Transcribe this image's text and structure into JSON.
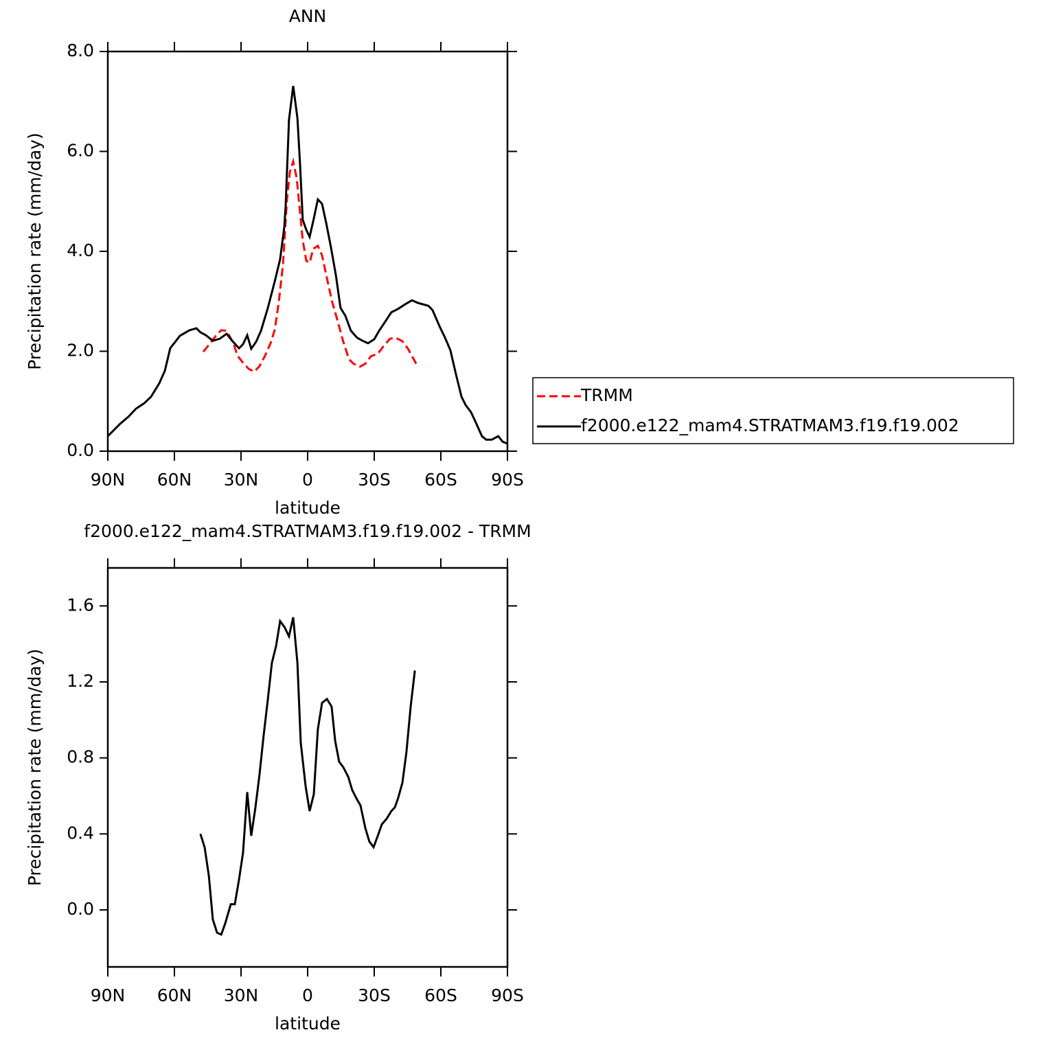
{
  "chart_data": [
    {
      "type": "line",
      "title": "ANN",
      "xlabel": "latitude",
      "ylabel": "Precipitation rate (mm/day)",
      "xlim": [
        90,
        -90
      ],
      "xticks": [
        {
          "value": 90,
          "label": "90N"
        },
        {
          "value": 60,
          "label": "60N"
        },
        {
          "value": 30,
          "label": "30N"
        },
        0,
        {
          "value": -30,
          "label": "30S"
        },
        {
          "value": -60,
          "label": "60S"
        },
        {
          "value": -90,
          "label": "90S"
        }
      ],
      "ylim": [
        0,
        8
      ],
      "yticks": [
        {
          "value": 0,
          "label": "0.0"
        },
        {
          "value": 2,
          "label": "2.0"
        },
        {
          "value": 4,
          "label": "4.0"
        },
        {
          "value": 6,
          "label": "6.0"
        },
        {
          "value": 8,
          "label": "8.0"
        }
      ],
      "legend": "right",
      "series": [
        {
          "name": "TRMM",
          "color": "#ff0000",
          "dash": "dashed",
          "x": [
            47.0,
            43.9,
            40.8,
            38.9,
            36.5,
            33.4,
            31.6,
            29.1,
            26.6,
            24.1,
            21.7,
            19.2,
            16.7,
            14.8,
            13.0,
            11.1,
            9.3,
            8.0,
            6.5,
            4.9,
            3.4,
            2.2,
            0.6,
            -0.9,
            -2.5,
            -4.6,
            -6.5,
            -8.7,
            -11.1,
            -13.3,
            -15.8,
            -18.6,
            -20.7,
            -23.5,
            -26.0,
            -28.5,
            -31.6,
            -34.0,
            -37.1,
            -39.6,
            -42.7,
            -45.2,
            -48.9
          ],
          "values": [
            1.99,
            2.16,
            2.34,
            2.42,
            2.41,
            2.16,
            1.91,
            1.77,
            1.65,
            1.59,
            1.7,
            1.91,
            2.16,
            2.43,
            2.98,
            3.74,
            5.04,
            5.59,
            5.8,
            5.46,
            4.77,
            4.22,
            3.81,
            3.77,
            4.05,
            4.11,
            3.92,
            3.46,
            2.98,
            2.64,
            2.23,
            1.84,
            1.75,
            1.69,
            1.75,
            1.9,
            1.95,
            2.09,
            2.25,
            2.27,
            2.2,
            2.05,
            1.75
          ]
        },
        {
          "name": "f2000.e122_mam4.STRATMAM3.f19.f19.002",
          "color": "#000000",
          "dash": "solid",
          "x": [
            90,
            84.4,
            80.7,
            77.3,
            73.6,
            70.5,
            66.8,
            64.3,
            61.9,
            57.5,
            53.2,
            50.1,
            48.3,
            45.8,
            42.7,
            39.6,
            36.5,
            34.0,
            30.9,
            29.1,
            27.2,
            25.4,
            23.2,
            21.0,
            17.9,
            14.8,
            12.4,
            10.5,
            9.9,
            8.4,
            6.5,
            4.6,
            3.4,
            2.2,
            0.6,
            -0.9,
            -2.8,
            -4.6,
            -6.5,
            -8.4,
            -10.5,
            -12.7,
            -14.8,
            -17.0,
            -19.5,
            -22.3,
            -24.7,
            -27.2,
            -30.0,
            -32.2,
            -34.6,
            -37.7,
            -40.8,
            -43.9,
            -47.0,
            -49.5,
            -51.9,
            -54.4,
            -56.3,
            -59.4,
            -61.9,
            -64.3,
            -66.8,
            -69.3,
            -71.2,
            -73.6,
            -76.1,
            -78.5,
            -80.4,
            -82.9,
            -85.9,
            -87.8,
            -90
          ],
          "values": [
            0.3,
            0.55,
            0.69,
            0.85,
            0.96,
            1.09,
            1.36,
            1.61,
            2.06,
            2.31,
            2.42,
            2.46,
            2.38,
            2.32,
            2.21,
            2.25,
            2.35,
            2.21,
            2.06,
            2.14,
            2.32,
            2.05,
            2.19,
            2.41,
            2.87,
            3.4,
            3.84,
            4.49,
            4.91,
            6.63,
            7.31,
            6.67,
            5.73,
            4.63,
            4.43,
            4.29,
            4.66,
            5.04,
            4.95,
            4.56,
            4.08,
            3.53,
            2.87,
            2.71,
            2.41,
            2.27,
            2.21,
            2.16,
            2.24,
            2.41,
            2.57,
            2.78,
            2.85,
            2.94,
            3.02,
            2.97,
            2.94,
            2.91,
            2.82,
            2.5,
            2.27,
            2.02,
            1.54,
            1.09,
            0.92,
            0.78,
            0.54,
            0.3,
            0.23,
            0.23,
            0.3,
            0.19,
            0.15
          ]
        }
      ]
    },
    {
      "type": "line",
      "title": "f2000.e122_mam4.STRATMAM3.f19.f19.002 - TRMM",
      "xlabel": "latitude",
      "ylabel": "Precipitation rate (mm/day)",
      "xlim": [
        90,
        -90
      ],
      "xticks": [
        {
          "value": 90,
          "label": "90N"
        },
        {
          "value": 60,
          "label": "60N"
        },
        {
          "value": 30,
          "label": "30N"
        },
        0,
        {
          "value": -30,
          "label": "30S"
        },
        {
          "value": -60,
          "label": "60S"
        },
        {
          "value": -90,
          "label": "90S"
        }
      ],
      "ylim": [
        -0.3,
        1.8
      ],
      "yticks": [
        {
          "value": 0,
          "label": "0.0"
        },
        {
          "value": 0.4,
          "label": "0.4"
        },
        {
          "value": 0.8,
          "label": "0.8"
        },
        {
          "value": 1.2,
          "label": "1.2"
        },
        {
          "value": 1.6,
          "label": "1.6"
        }
      ],
      "series": [
        {
          "color": "#000000",
          "dash": "solid",
          "x": [
            48.3,
            46.4,
            44.5,
            42.7,
            40.8,
            38.9,
            37.1,
            34.6,
            32.8,
            30.9,
            29.1,
            27.2,
            25.4,
            23.5,
            21.7,
            19.8,
            17.9,
            16.1,
            14.2,
            12.4,
            10.5,
            8.4,
            6.5,
            4.6,
            3.1,
            0.9,
            -0.9,
            -2.8,
            -4.6,
            -6.5,
            -8.7,
            -10.8,
            -12.4,
            -14.2,
            -16.1,
            -18.3,
            -20.1,
            -22.3,
            -23.8,
            -26.0,
            -27.8,
            -29.7,
            -31.6,
            -33.4,
            -35.6,
            -37.7,
            -39.3,
            -40.8,
            -42.7,
            -44.5,
            -46.4,
            -48.3
          ],
          "values": [
            0.4,
            0.33,
            0.18,
            -0.05,
            -0.12,
            -0.13,
            -0.07,
            0.03,
            0.03,
            0.16,
            0.3,
            0.62,
            0.39,
            0.54,
            0.71,
            0.92,
            1.11,
            1.3,
            1.39,
            1.52,
            1.49,
            1.44,
            1.54,
            1.3,
            0.88,
            0.65,
            0.52,
            0.61,
            0.95,
            1.09,
            1.11,
            1.07,
            0.89,
            0.78,
            0.75,
            0.7,
            0.63,
            0.58,
            0.55,
            0.43,
            0.36,
            0.33,
            0.39,
            0.45,
            0.48,
            0.52,
            0.54,
            0.59,
            0.67,
            0.83,
            1.07,
            1.26
          ]
        }
      ]
    }
  ]
}
